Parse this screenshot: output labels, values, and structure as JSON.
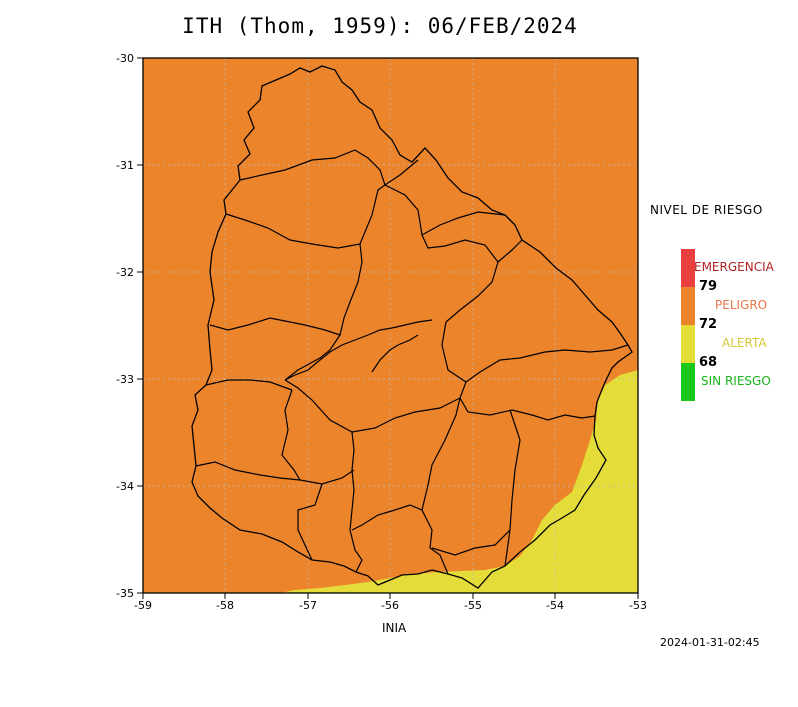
{
  "title": "ITH (Thom, 1959): 06/FEB/2024",
  "x_axis_label": "INIA",
  "timestamp": "2024-01-31-02:45",
  "axes": {
    "x_ticks": [
      "-59",
      "-58",
      "-57",
      "-56",
      "-55",
      "-54",
      "-53"
    ],
    "y_ticks": [
      "-30",
      "-31",
      "-32",
      "-33",
      "-34",
      "-35"
    ]
  },
  "legend": {
    "title": "NIVEL DE RIESGO",
    "levels": [
      {
        "label": "EMERGENCIA",
        "color": "#e8403f"
      },
      {
        "label": "PELIGRO",
        "color": "#ec842c"
      },
      {
        "label": "ALERTA",
        "color": "#e4dc38"
      },
      {
        "label": "SIN RIESGO",
        "color": "#19c819"
      }
    ],
    "thresholds": [
      "79",
      "72",
      "68"
    ]
  },
  "colors": {
    "peligro_fill": "#ec842c",
    "alerta_fill": "#e4dc38",
    "border_line": "#000000"
  }
}
